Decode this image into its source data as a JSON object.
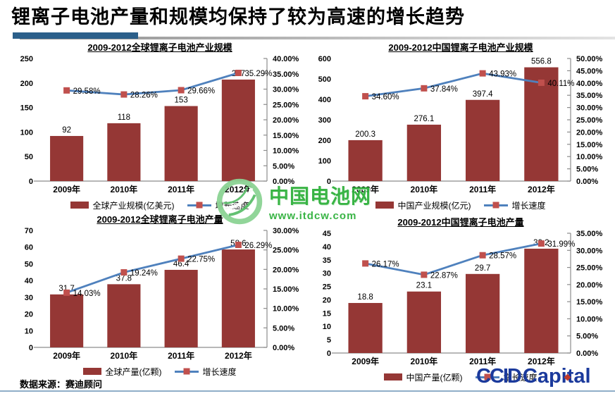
{
  "page": {
    "title": "锂离子电池产量和规模均保持了较为高速的增长趋势",
    "footer": {
      "source_label": "数据来源：",
      "source_value": "赛迪顾问"
    },
    "watermark": {
      "site_name": "中国电池网",
      "site_url": "www.itdcw.com"
    },
    "logo": {
      "ccid": "CCID",
      "capital": "Capital"
    },
    "colors": {
      "bar": "#953735",
      "line": "#4F81BD",
      "marker": "#C0504D",
      "axis": "#8C8C8C",
      "divider_blue": "#2B5F8A",
      "bottom_rule": "#8FAEC8",
      "watermark_green": "#2FB13C",
      "logo_blue": "#1B3A9C"
    }
  },
  "chart_data": [
    {
      "type": "bar",
      "subtype": "bar+line-combo",
      "title": "2009-2012全球锂离子电池产业规模",
      "categories": [
        "2009年",
        "2010年",
        "2011年",
        "2012年"
      ],
      "bar_series": {
        "name": "全球产业规模(亿美元)",
        "axis": "left",
        "values": [
          92,
          118,
          153,
          207
        ],
        "labels": [
          "92",
          "118",
          "153",
          "207"
        ]
      },
      "line_series": {
        "name": "增长速度",
        "axis": "right",
        "values": [
          29.58,
          28.26,
          29.66,
          35.29
        ],
        "labels": [
          "29.58%",
          "28.26%",
          "29.66%",
          "35.29%"
        ]
      },
      "left_axis": {
        "min": 0,
        "max": 250,
        "tick_labels": [
          "0",
          "50",
          "100",
          "150",
          "200",
          "250"
        ]
      },
      "right_axis": {
        "min": 0,
        "max": 40,
        "tick_labels": [
          "0.00%",
          "5.00%",
          "10.00%",
          "15.00%",
          "20.00%",
          "25.00%",
          "30.00%",
          "35.00%",
          "40.00%"
        ]
      },
      "grid": false,
      "legend_position": "bottom"
    },
    {
      "type": "bar",
      "subtype": "bar+line-combo",
      "title": "2009-2012中国锂离子电池产业规模",
      "categories": [
        "2009年",
        "2010年",
        "2011年",
        "2012年"
      ],
      "bar_series": {
        "name": "中国产业规模(亿元)",
        "axis": "left",
        "values": [
          200.3,
          276.1,
          397.4,
          556.8
        ],
        "labels": [
          "200.3",
          "276.1",
          "397.4",
          "556.8"
        ]
      },
      "line_series": {
        "name": "增长速度",
        "axis": "right",
        "values": [
          34.6,
          37.84,
          43.93,
          40.11
        ],
        "labels": [
          "34.60%",
          "37.84%",
          "43.93%",
          "40.11%"
        ]
      },
      "left_axis": {
        "min": 0,
        "max": 600,
        "tick_labels": [
          "0",
          "100",
          "200",
          "300",
          "400",
          "500",
          "600"
        ]
      },
      "right_axis": {
        "min": 0,
        "max": 50,
        "tick_labels": [
          "0.00%",
          "5.00%",
          "10.00%",
          "15.00%",
          "20.00%",
          "25.00%",
          "30.00%",
          "35.00%",
          "40.00%",
          "45.00%",
          "50.00%"
        ]
      },
      "grid": false,
      "legend_position": "bottom"
    },
    {
      "type": "bar",
      "subtype": "bar+line-combo",
      "title": "2009-2012全球锂离子电池产量",
      "categories": [
        "2009年",
        "2010年",
        "2011年",
        "2012年"
      ],
      "bar_series": {
        "name": "全球产量(亿颗)",
        "axis": "left",
        "values": [
          31.7,
          37.8,
          46.4,
          58.6
        ],
        "labels": [
          "31.7",
          "37.8",
          "46.4",
          "58.6"
        ]
      },
      "line_series": {
        "name": "增长速度",
        "axis": "right",
        "values": [
          14.03,
          19.24,
          22.75,
          26.29
        ],
        "labels": [
          "14.03%",
          "19.24%",
          "22.75%",
          "26.29%"
        ]
      },
      "left_axis": {
        "min": 0,
        "max": 70,
        "tick_labels": [
          "0",
          "10",
          "20",
          "30",
          "40",
          "50",
          "60",
          "70"
        ]
      },
      "right_axis": {
        "min": 0,
        "max": 30,
        "tick_labels": [
          "0.00%",
          "5.00%",
          "10.00%",
          "15.00%",
          "20.00%",
          "25.00%",
          "30.00%"
        ]
      },
      "grid": false,
      "legend_position": "bottom"
    },
    {
      "type": "bar",
      "subtype": "bar+line-combo",
      "title": "2009-2012中国锂离子电池产量",
      "categories": [
        "2009年",
        "2010年",
        "2011年",
        "2012年"
      ],
      "bar_series": {
        "name": "中国产量(亿颗)",
        "axis": "left",
        "values": [
          18.8,
          23.1,
          29.7,
          39.2
        ],
        "labels": [
          "18.8",
          "23.1",
          "29.7",
          "39.2"
        ]
      },
      "line_series": {
        "name": "增长速度",
        "axis": "right",
        "values": [
          26.17,
          22.87,
          28.57,
          31.99
        ],
        "labels": [
          "26.17%",
          "22.87%",
          "28.57%",
          "31.99%"
        ]
      },
      "left_axis": {
        "min": 0,
        "max": 45,
        "tick_labels": [
          "0",
          "5",
          "10",
          "15",
          "20",
          "25",
          "30",
          "35",
          "40",
          "45"
        ]
      },
      "right_axis": {
        "min": 0,
        "max": 35,
        "tick_labels": [
          "0.00%",
          "5.00%",
          "10.00%",
          "15.00%",
          "20.00%",
          "25.00%",
          "30.00%",
          "35.00%"
        ]
      },
      "grid": false,
      "legend_position": "bottom"
    }
  ]
}
